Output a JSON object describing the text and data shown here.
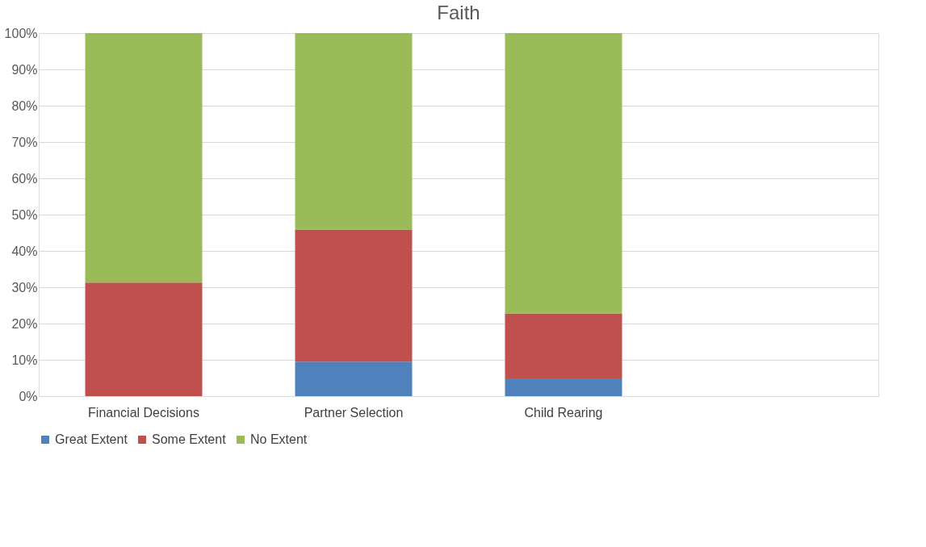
{
  "chart_data": {
    "type": "bar",
    "stacked": true,
    "title": "Faith",
    "categories": [
      "Financial Decisions",
      "Partner Selection",
      "Child Rearing",
      null
    ],
    "series": [
      {
        "name": "Great Extent",
        "color": "#4f81bd",
        "values": [
          0,
          9.5,
          4.9,
          null
        ]
      },
      {
        "name": "Some Extent",
        "color": "#c0504d",
        "values": [
          31.3,
          36.4,
          17.9,
          null
        ]
      },
      {
        "name": "No Extent",
        "color": "#9bbb59",
        "values": [
          68.7,
          54.1,
          77.2,
          null
        ]
      }
    ],
    "ylim": [
      0,
      100
    ],
    "yticks": [
      {
        "value": 0,
        "label": "0%"
      },
      {
        "value": 10,
        "label": "10%"
      },
      {
        "value": 20,
        "label": "20%"
      },
      {
        "value": 30,
        "label": "30%"
      },
      {
        "value": 40,
        "label": "40%"
      },
      {
        "value": 50,
        "label": "50%"
      },
      {
        "value": 60,
        "label": "60%"
      },
      {
        "value": 70,
        "label": "70%"
      },
      {
        "value": 80,
        "label": "80%"
      },
      {
        "value": 90,
        "label": "90%"
      },
      {
        "value": 100,
        "label": "100%"
      }
    ],
    "grid": "y",
    "legend": "bottom"
  }
}
